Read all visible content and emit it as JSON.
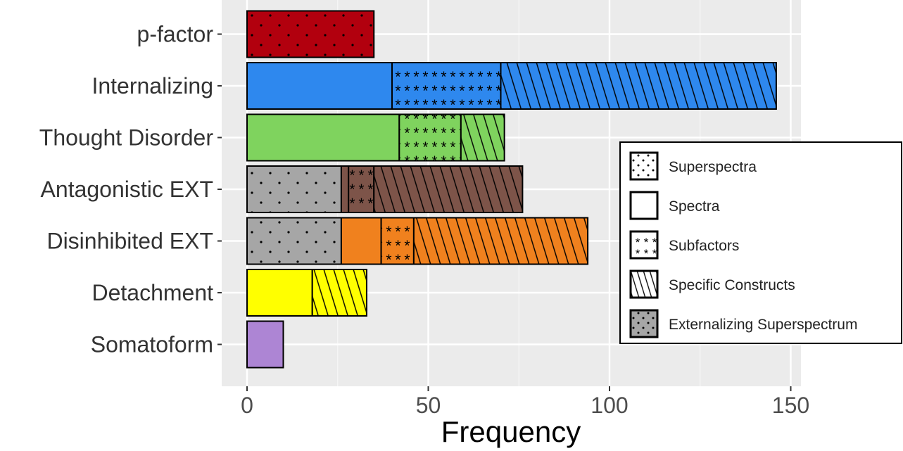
{
  "chart_data": {
    "type": "bar",
    "orientation": "horizontal",
    "stacked": true,
    "title": "",
    "xlabel": "Frequency",
    "ylabel": "",
    "xlim": [
      -7,
      154
    ],
    "x_ticks": [
      0,
      50,
      100,
      150
    ],
    "grid": true,
    "legend_position": "right",
    "categories": [
      "p-factor",
      "Internalizing",
      "Thought Disorder",
      "Antagonistic EXT",
      "Disinhibited EXT",
      "Detachment",
      "Somatoform"
    ],
    "category_colors": {
      "p-factor": "#b2000e",
      "Internalizing": "#2e88ee",
      "Thought Disorder": "#7fd35e",
      "Antagonistic EXT": "#7d5449",
      "Disinhibited EXT": "#f0811e",
      "Detachment": "#ffff00",
      "Somatoform": "#ad85d4"
    },
    "externalizing_color": "#a6a6a6",
    "legend": [
      {
        "label": "Superspectra",
        "pattern": "dots",
        "fill": "#ffffff"
      },
      {
        "label": "Spectra",
        "pattern": "none",
        "fill": "#ffffff"
      },
      {
        "label": "Subfactors",
        "pattern": "stars",
        "fill": "#ffffff"
      },
      {
        "label": "Specific Constructs",
        "pattern": "stripes",
        "fill": "#ffffff"
      },
      {
        "label": "Externalizing Superspectrum",
        "pattern": "dots",
        "fill": "#a6a6a6"
      }
    ],
    "series": [
      {
        "name": "Externalizing Superspectrum",
        "pattern": "dots",
        "values": [
          0,
          0,
          0,
          26,
          26,
          0,
          0
        ]
      },
      {
        "name": "Superspectra",
        "pattern": "dots",
        "values": [
          35,
          0,
          0,
          0,
          0,
          0,
          0
        ]
      },
      {
        "name": "Spectra",
        "pattern": "none",
        "values": [
          0,
          40,
          42,
          2,
          11,
          18,
          10
        ]
      },
      {
        "name": "Subfactors",
        "pattern": "stars",
        "values": [
          0,
          30,
          17,
          7,
          9,
          0,
          0
        ]
      },
      {
        "name": "Specific Constructs",
        "pattern": "stripes",
        "values": [
          0,
          76,
          12,
          41,
          48,
          15,
          0
        ]
      }
    ]
  }
}
